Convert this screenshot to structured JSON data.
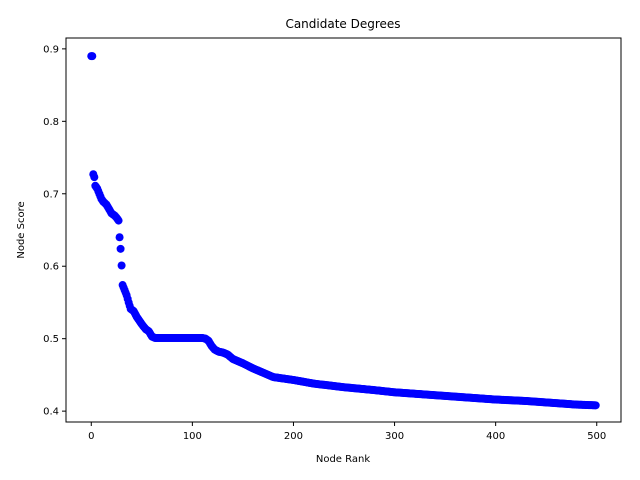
{
  "chart_data": {
    "type": "scatter",
    "title": "Candidate Degrees",
    "xlabel": "Node Rank",
    "ylabel": "Node Score",
    "xlim": [
      -25,
      524
    ],
    "ylim": [
      0.385,
      0.915
    ],
    "xticks": [
      0,
      100,
      200,
      300,
      400,
      500
    ],
    "yticks": [
      0.4,
      0.5,
      0.6,
      0.7,
      0.8,
      0.9
    ],
    "grid": false,
    "marker_color": "#0000ff",
    "points_x_range": [
      0,
      499
    ],
    "profile": [
      [
        0,
        0.89
      ],
      [
        1,
        0.89
      ],
      [
        2,
        0.727
      ],
      [
        3,
        0.723
      ],
      [
        4,
        0.711
      ],
      [
        6,
        0.707
      ],
      [
        8,
        0.7
      ],
      [
        10,
        0.693
      ],
      [
        12,
        0.689
      ],
      [
        15,
        0.685
      ],
      [
        18,
        0.678
      ],
      [
        20,
        0.673
      ],
      [
        23,
        0.67
      ],
      [
        25,
        0.667
      ],
      [
        27,
        0.663
      ],
      [
        28,
        0.64
      ],
      [
        29,
        0.624
      ],
      [
        30,
        0.601
      ],
      [
        31,
        0.574
      ],
      [
        33,
        0.567
      ],
      [
        35,
        0.56
      ],
      [
        37,
        0.55
      ],
      [
        39,
        0.541
      ],
      [
        42,
        0.538
      ],
      [
        45,
        0.53
      ],
      [
        48,
        0.524
      ],
      [
        51,
        0.518
      ],
      [
        54,
        0.513
      ],
      [
        57,
        0.51
      ],
      [
        60,
        0.503
      ],
      [
        63,
        0.501
      ],
      [
        110,
        0.501
      ],
      [
        113,
        0.5
      ],
      [
        116,
        0.497
      ],
      [
        119,
        0.49
      ],
      [
        122,
        0.485
      ],
      [
        126,
        0.482
      ],
      [
        130,
        0.481
      ],
      [
        135,
        0.478
      ],
      [
        140,
        0.472
      ],
      [
        150,
        0.466
      ],
      [
        160,
        0.459
      ],
      [
        170,
        0.453
      ],
      [
        180,
        0.447
      ],
      [
        200,
        0.443
      ],
      [
        220,
        0.438
      ],
      [
        250,
        0.433
      ],
      [
        280,
        0.429
      ],
      [
        300,
        0.426
      ],
      [
        320,
        0.424
      ],
      [
        350,
        0.421
      ],
      [
        380,
        0.418
      ],
      [
        400,
        0.416
      ],
      [
        430,
        0.414
      ],
      [
        450,
        0.412
      ],
      [
        470,
        0.41
      ],
      [
        480,
        0.409
      ],
      [
        499,
        0.408
      ]
    ]
  }
}
